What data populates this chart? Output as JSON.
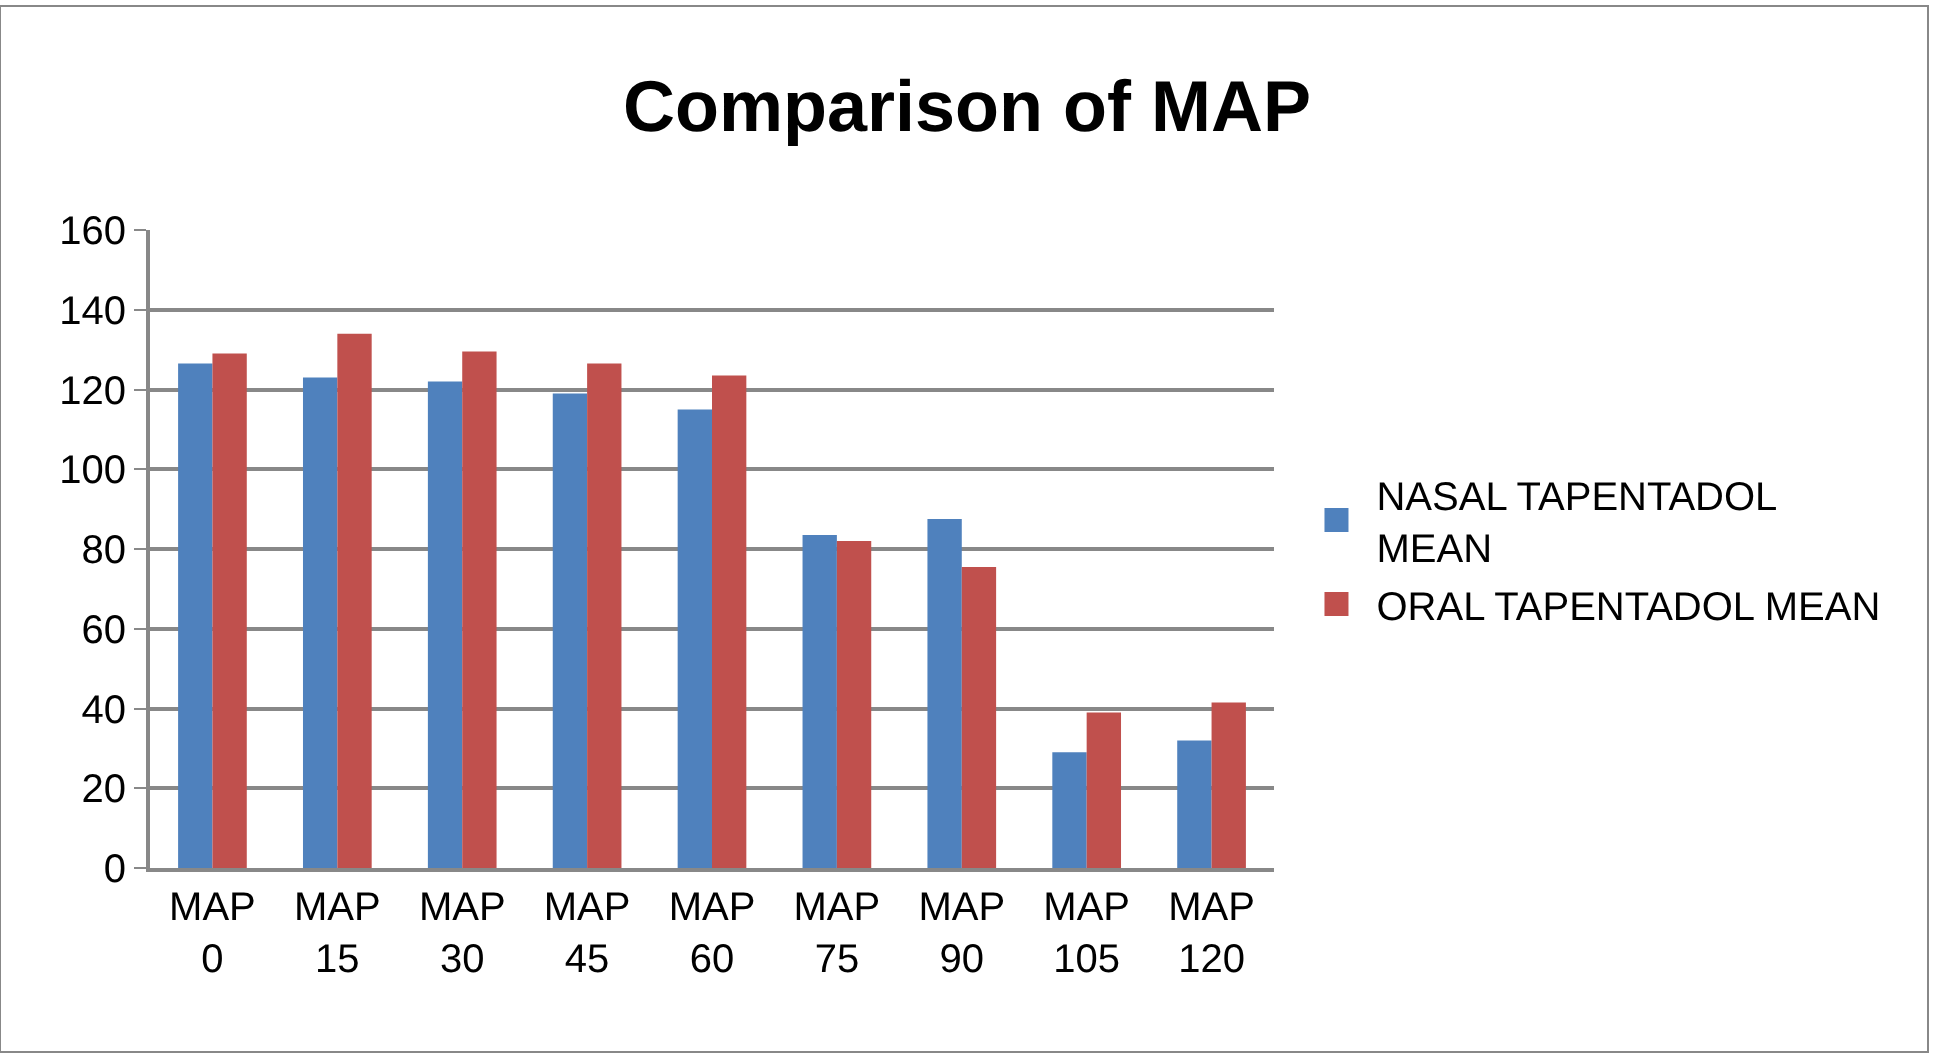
{
  "chart_data": {
    "type": "bar",
    "title": "Comparison of MAP",
    "categories": [
      "MAP 0",
      "MAP 15",
      "MAP 30",
      "MAP 45",
      "MAP 60",
      "MAP 75",
      "MAP 90",
      "MAP 105",
      "MAP 120"
    ],
    "series": [
      {
        "name": "NASAL TAPENTADOL MEAN",
        "color": "#4f81bd",
        "values": [
          126.5,
          123,
          122,
          119,
          115,
          83.5,
          87.5,
          29,
          32
        ]
      },
      {
        "name": "ORAL TAPENTADOL MEAN",
        "color": "#c0504d",
        "values": [
          129,
          134,
          129.5,
          126.5,
          123.5,
          82,
          75.5,
          39,
          41.5
        ]
      }
    ],
    "ylim": [
      0,
      160
    ],
    "yticks": [
      0,
      20,
      40,
      60,
      80,
      100,
      120,
      140,
      160
    ],
    "grid": "y",
    "legend": "right"
  }
}
